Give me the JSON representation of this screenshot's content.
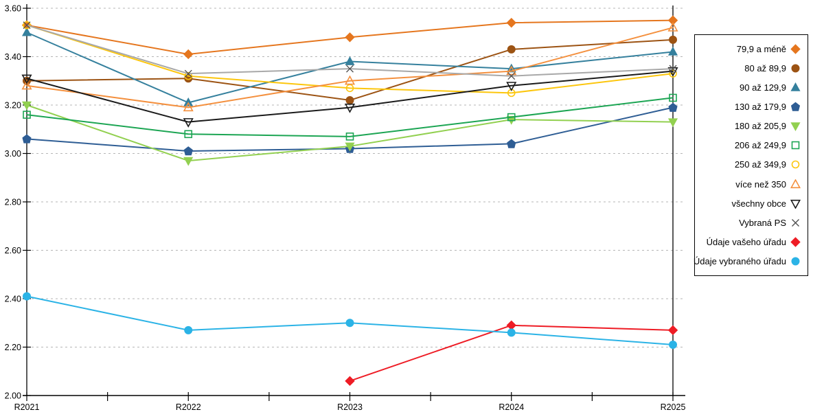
{
  "chart_data": {
    "type": "line",
    "title": "",
    "xlabel": "",
    "ylabel": "",
    "categories": [
      "R2021",
      "R2022",
      "R2023",
      "R2024",
      "R2025"
    ],
    "ylim": [
      2.0,
      3.6
    ],
    "ytick_step": 0.2,
    "y_tick_labels": [
      "2.00",
      "2.20",
      "2.40",
      "2.60",
      "2.80",
      "3.00",
      "3.20",
      "3.40",
      "3.60"
    ],
    "grid": "horizontal-dashed",
    "legend_position": "right",
    "series": [
      {
        "id": "79-9-a-mene",
        "name": "79,9 a méně",
        "marker": "diamond",
        "fill": "filled",
        "color": "#e5761e",
        "values": [
          3.53,
          3.41,
          3.48,
          3.54,
          3.55
        ]
      },
      {
        "id": "80-az-89-9",
        "name": "80 až 89,9",
        "marker": "circle",
        "fill": "filled",
        "color": "#9c5313",
        "values": [
          3.3,
          3.31,
          3.22,
          3.43,
          3.47
        ]
      },
      {
        "id": "90-az-129-9",
        "name": "90 až 129,9",
        "marker": "triangle-up",
        "fill": "filled",
        "color": "#35809d",
        "values": [
          3.5,
          3.21,
          3.38,
          3.35,
          3.42
        ]
      },
      {
        "id": "130-az-179-9",
        "name": "130 až 179,9",
        "marker": "pentagon",
        "fill": "filled",
        "color": "#2e5d94",
        "values": [
          3.06,
          3.01,
          3.02,
          3.04,
          3.19
        ]
      },
      {
        "id": "180-az-205-9",
        "name": "180 až 205,9",
        "marker": "triangle-down",
        "fill": "filled",
        "color": "#92d050",
        "values": [
          3.2,
          2.97,
          3.03,
          3.14,
          3.13
        ]
      },
      {
        "id": "206-az-249-9",
        "name": "206 až 249,9",
        "marker": "square",
        "fill": "open",
        "color": "#1ca553",
        "values": [
          3.16,
          3.08,
          3.07,
          3.15,
          3.23
        ]
      },
      {
        "id": "250-az-349-9",
        "name": "250 až 349,9",
        "marker": "circle",
        "fill": "open",
        "color": "#fcc60d",
        "values": [
          3.53,
          3.32,
          3.27,
          3.25,
          3.33
        ]
      },
      {
        "id": "vice-nez-350",
        "name": "více než 350",
        "marker": "triangle-up",
        "fill": "open",
        "color": "#f4903e",
        "values": [
          3.28,
          3.19,
          3.3,
          3.34,
          3.52
        ]
      },
      {
        "id": "vsechny-obce",
        "name": "všechny obce",
        "marker": "triangle-down",
        "fill": "open",
        "color": "#1a1a1a",
        "values": [
          3.31,
          3.13,
          3.19,
          3.28,
          3.34
        ]
      },
      {
        "id": "vybrana-ps",
        "name": "Vybraná PS",
        "marker": "x",
        "fill": "open",
        "color": "#a8a8a8",
        "marker_color": "#4d4d4d",
        "values": [
          3.53,
          3.33,
          3.35,
          3.32,
          3.35
        ]
      },
      {
        "id": "udaje-vaseho-uradu",
        "name": "Údaje vašeho úřadu",
        "marker": "diamond",
        "fill": "filled",
        "color": "#ee1c25",
        "values": [
          null,
          null,
          2.06,
          2.29,
          2.27
        ]
      },
      {
        "id": "udaje-vybraneho-uradu",
        "name": "Údaje vybraného úřadu",
        "marker": "circle",
        "fill": "filled",
        "color": "#2bb3e6",
        "values": [
          2.41,
          2.27,
          2.3,
          2.26,
          2.21
        ]
      }
    ],
    "colors": {
      "grid": "#b5b5b5",
      "axis": "#000000",
      "text": "#000000"
    }
  }
}
